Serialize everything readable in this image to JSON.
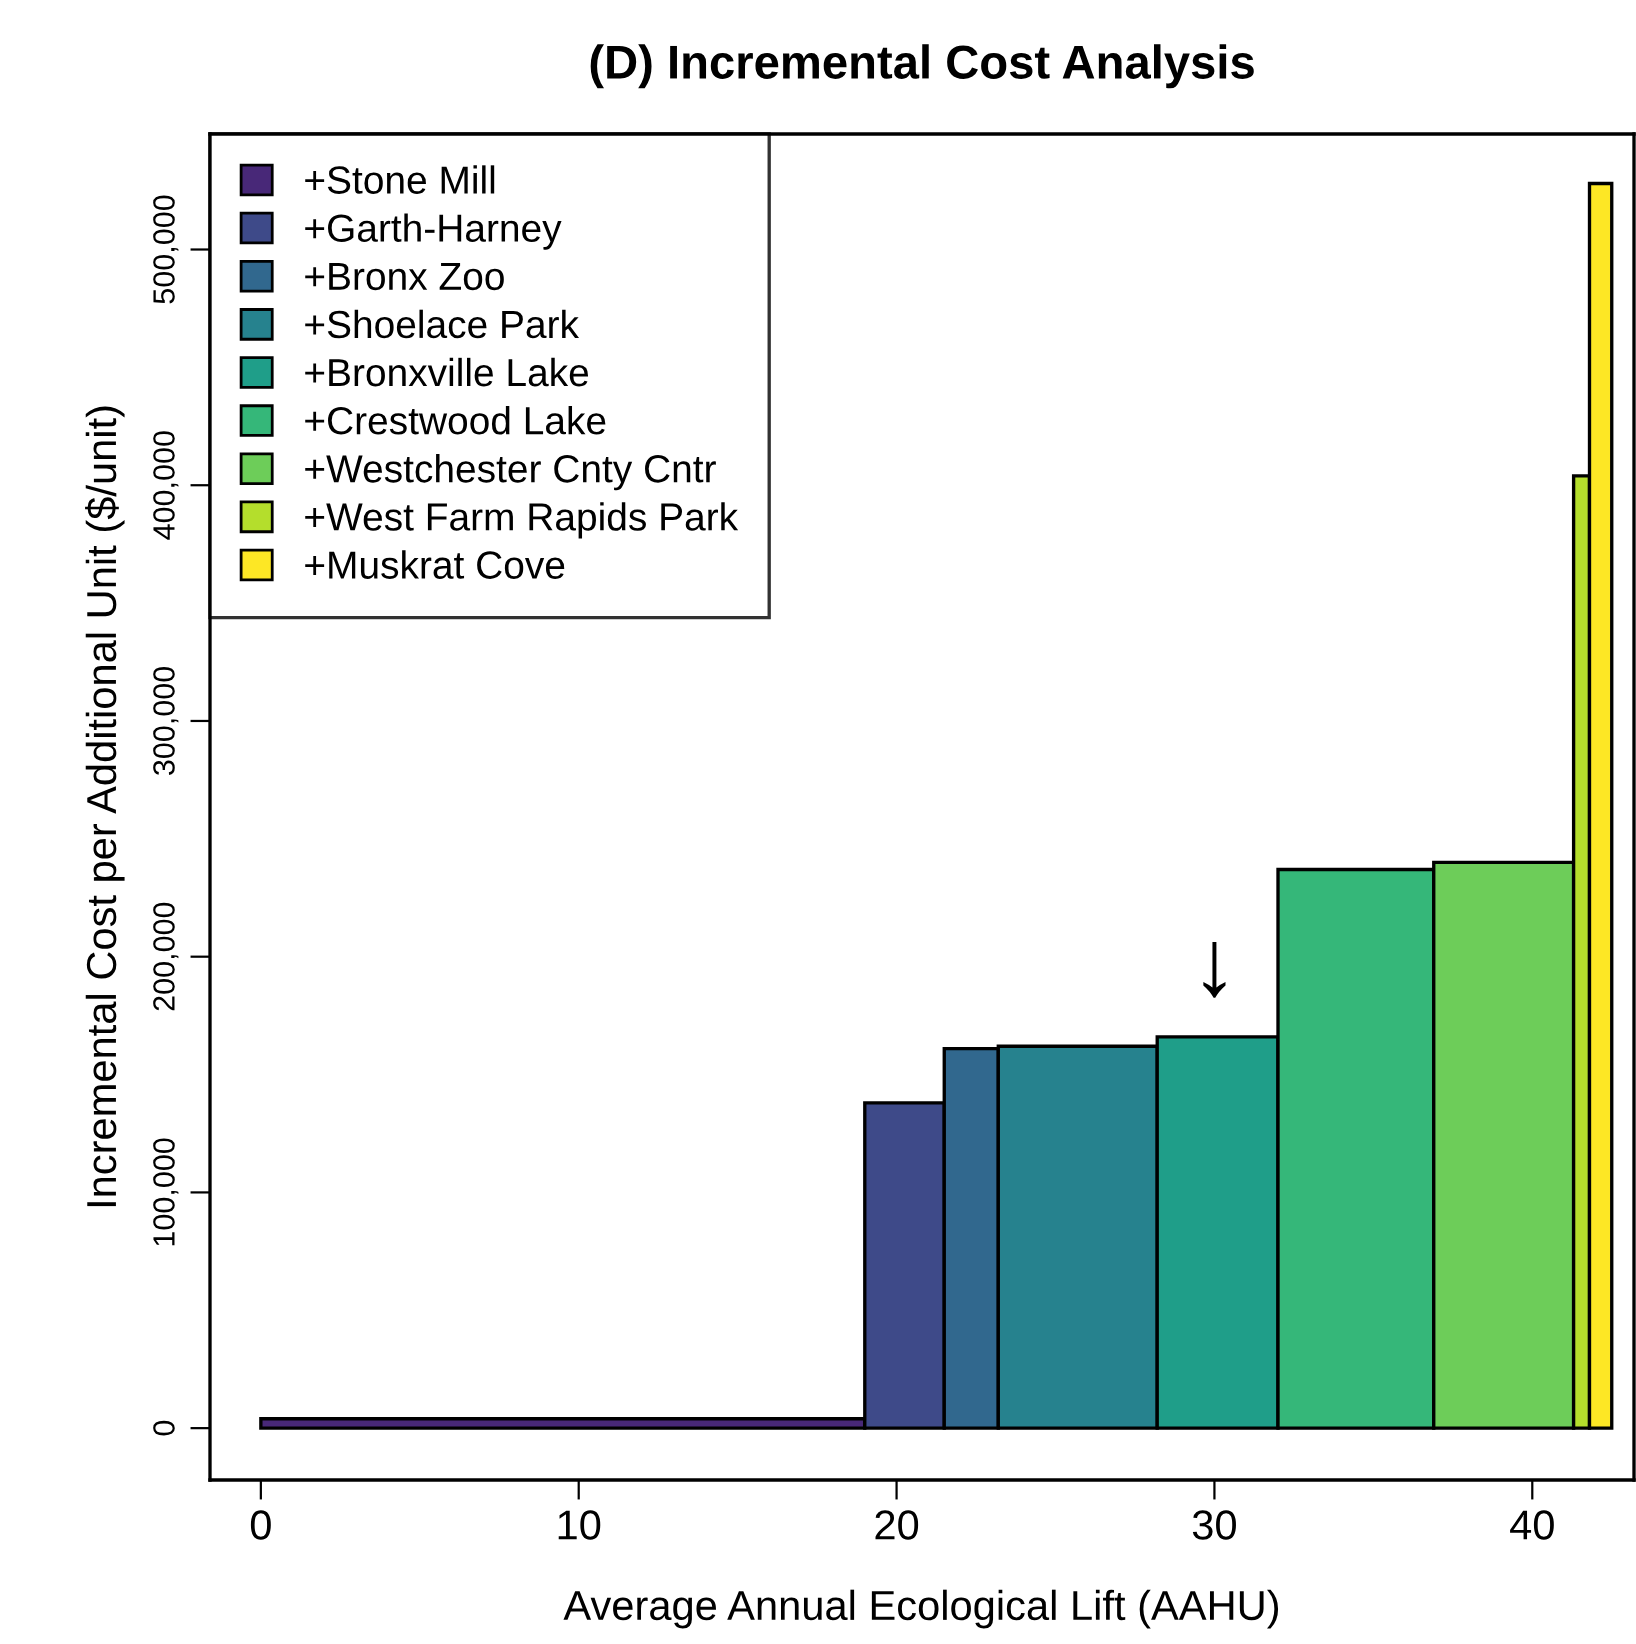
{
  "chart_data": {
    "type": "histogram",
    "title": "(D) Incremental Cost Analysis",
    "xlabel": "Average Annual Ecological Lift (AAHU)",
    "ylabel": "Incremental Cost per Additional Unit ($/unit)",
    "bins": [
      0,
      19.0,
      21.5,
      23.2,
      28.2,
      32.0,
      36.9,
      41.3,
      41.8,
      42.5
    ],
    "series": [
      {
        "name": "+Stone Mill",
        "color": "#482878",
        "values": [
          4000,
          null,
          null,
          null,
          null,
          null,
          null,
          null,
          null
        ]
      },
      {
        "name": "+Garth-Harney",
        "color": "#3e4a89",
        "values": [
          null,
          138000,
          null,
          null,
          null,
          null,
          null,
          null,
          null
        ]
      },
      {
        "name": "+Bronx Zoo",
        "color": "#31688e",
        "values": [
          null,
          null,
          161000,
          null,
          null,
          null,
          null,
          null,
          null
        ]
      },
      {
        "name": "+Shoelace Park",
        "color": "#26828e",
        "values": [
          null,
          null,
          null,
          162000,
          null,
          null,
          null,
          null,
          null
        ]
      },
      {
        "name": "+Bronxville Lake",
        "color": "#1f9e89",
        "values": [
          null,
          null,
          null,
          null,
          166000,
          null,
          null,
          null,
          null
        ]
      },
      {
        "name": "+Crestwood Lake",
        "color": "#35b779",
        "values": [
          null,
          null,
          null,
          null,
          null,
          237000,
          null,
          null,
          null
        ]
      },
      {
        "name": "+Westchester Cnty Cntr",
        "color": "#6dcd59",
        "values": [
          null,
          null,
          null,
          null,
          null,
          null,
          240000,
          null,
          null
        ]
      },
      {
        "name": "+West Farm Rapids Park",
        "color": "#b4de2c",
        "values": [
          null,
          null,
          null,
          null,
          null,
          null,
          null,
          404000,
          null
        ]
      },
      {
        "name": "+Muskrat Cove",
        "color": "#fde725",
        "values": [
          null,
          null,
          null,
          null,
          null,
          null,
          null,
          null,
          528000
        ]
      }
    ],
    "annotations": [
      {
        "text": "↓",
        "x": 30,
        "y": 166000
      }
    ],
    "xlim": [
      -1.6,
      43.2
    ],
    "xticks": [
      0,
      10,
      20,
      30,
      40
    ],
    "ylim": [
      -22000,
      549000
    ],
    "yticks": [
      {
        "value": 0,
        "label": "0"
      },
      {
        "value": 100000,
        "label": "100,000"
      },
      {
        "value": 200000,
        "label": "200,000"
      },
      {
        "value": 300000,
        "label": "300,000"
      },
      {
        "value": 400000,
        "label": "400,000"
      },
      {
        "value": 500000,
        "label": "500,000"
      }
    ],
    "legend": "top left",
    "grid": false
  }
}
